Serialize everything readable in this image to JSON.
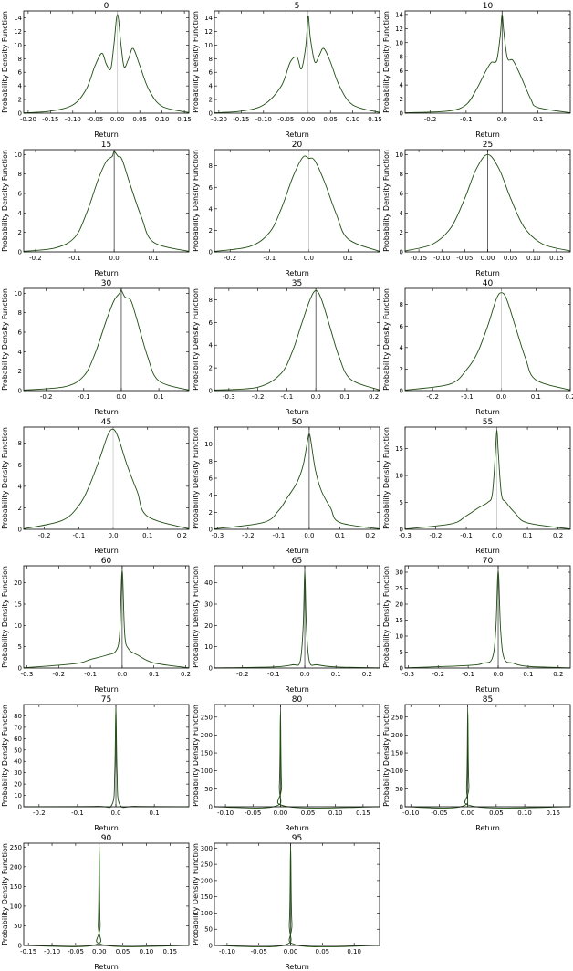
{
  "chart_data": [
    {
      "type": "line",
      "title": "0",
      "xlabel": "Return",
      "ylabel": "Probability Density Function",
      "xlim": [
        -0.21,
        0.16
      ],
      "ylim": [
        0,
        15
      ],
      "xticks": [
        -0.2,
        -0.15,
        -0.1,
        -0.05,
        0.0,
        0.05,
        0.1,
        0.15
      ],
      "yticks": [
        0,
        2,
        4,
        6,
        8,
        10,
        12,
        14
      ],
      "vline": {
        "x": 0.0,
        "dark": false
      },
      "x": [
        -0.21,
        -0.15,
        -0.1,
        -0.07,
        -0.05,
        -0.035,
        -0.025,
        -0.015,
        -0.008,
        0.0,
        0.008,
        0.015,
        0.025,
        0.035,
        0.05,
        0.07,
        0.1,
        0.16
      ],
      "y": [
        0.05,
        0.3,
        1.2,
        3.5,
        7.0,
        8.8,
        7.2,
        6.5,
        10.0,
        14.5,
        10.0,
        6.8,
        8.0,
        9.5,
        7.0,
        3.5,
        1.0,
        0.1
      ]
    },
    {
      "type": "line",
      "title": "5",
      "xlabel": "Return",
      "ylabel": "Probability Density Function",
      "xlim": [
        -0.21,
        0.16
      ],
      "ylim": [
        0,
        15
      ],
      "xticks": [
        -0.2,
        -0.15,
        -0.1,
        -0.05,
        0.0,
        0.05,
        0.1,
        0.15
      ],
      "yticks": [
        0,
        2,
        4,
        6,
        8,
        10,
        12,
        14
      ],
      "vline": {
        "x": 0.0,
        "dark": false
      },
      "x": [
        -0.21,
        -0.15,
        -0.1,
        -0.06,
        -0.04,
        -0.025,
        -0.015,
        -0.005,
        0.0,
        0.005,
        0.015,
        0.025,
        0.035,
        0.05,
        0.07,
        0.1,
        0.16
      ],
      "y": [
        0.05,
        0.3,
        1.2,
        4.0,
        7.5,
        8.2,
        6.5,
        10.0,
        14.3,
        11.0,
        7.5,
        8.5,
        9.5,
        7.5,
        4.0,
        1.2,
        0.1
      ]
    },
    {
      "type": "line",
      "title": "10",
      "xlabel": "Return",
      "ylabel": "Probability Density Function",
      "xlim": [
        -0.27,
        0.19
      ],
      "ylim": [
        0,
        14.5
      ],
      "xticks": [
        -0.2,
        -0.1,
        0.0,
        0.1
      ],
      "yticks": [
        0,
        2,
        4,
        6,
        8,
        10,
        12,
        14
      ],
      "vline": {
        "x": 0.0,
        "dark": true
      },
      "x": [
        -0.27,
        -0.15,
        -0.1,
        -0.07,
        -0.045,
        -0.03,
        -0.015,
        -0.005,
        0.0,
        0.005,
        0.015,
        0.03,
        0.05,
        0.08,
        0.1,
        0.19
      ],
      "y": [
        0.05,
        0.3,
        1.2,
        3.5,
        6.0,
        7.2,
        7.5,
        11.0,
        14.0,
        11.5,
        7.8,
        7.5,
        5.5,
        2.0,
        0.8,
        0.05
      ]
    },
    {
      "type": "line",
      "title": "15",
      "xlabel": "Return",
      "ylabel": "Probability Density Function",
      "xlim": [
        -0.23,
        0.19
      ],
      "ylim": [
        0,
        10.5
      ],
      "xticks": [
        -0.2,
        -0.1,
        0.0,
        0.1
      ],
      "yticks": [
        0,
        2,
        4,
        6,
        8,
        10
      ],
      "vline": {
        "x": 0.0,
        "dark": true
      },
      "x": [
        -0.23,
        -0.15,
        -0.1,
        -0.07,
        -0.04,
        -0.02,
        -0.005,
        0.0,
        0.01,
        0.02,
        0.04,
        0.07,
        0.1,
        0.19
      ],
      "y": [
        0.05,
        0.4,
        1.5,
        4.0,
        7.5,
        9.3,
        9.8,
        10.3,
        9.8,
        9.5,
        7.0,
        3.5,
        1.0,
        0.05
      ]
    },
    {
      "type": "line",
      "title": "20",
      "xlabel": "Return",
      "ylabel": "Probability Density Function",
      "xlim": [
        -0.24,
        0.18
      ],
      "ylim": [
        0,
        9.5
      ],
      "xticks": [
        -0.2,
        -0.1,
        0.0,
        0.1
      ],
      "yticks": [
        0,
        2,
        4,
        6,
        8
      ],
      "vline": {
        "x": 0.0,
        "dark": false
      },
      "x": [
        -0.24,
        -0.15,
        -0.1,
        -0.07,
        -0.04,
        -0.015,
        0.0,
        0.015,
        0.04,
        0.07,
        0.1,
        0.18
      ],
      "y": [
        0.05,
        0.5,
        1.8,
        4.0,
        7.0,
        8.8,
        8.7,
        8.5,
        6.5,
        3.5,
        1.2,
        0.05
      ]
    },
    {
      "type": "line",
      "title": "25",
      "xlabel": "Return",
      "ylabel": "Probability Density Function",
      "xlim": [
        -0.18,
        0.18
      ],
      "ylim": [
        0,
        10.5
      ],
      "xticks": [
        -0.15,
        -0.1,
        -0.05,
        0.0,
        0.05,
        0.1,
        0.15
      ],
      "yticks": [
        0,
        2,
        4,
        6,
        8,
        10
      ],
      "vline": {
        "x": 0.0,
        "dark": true
      },
      "x": [
        -0.18,
        -0.12,
        -0.08,
        -0.05,
        -0.025,
        0.0,
        0.025,
        0.05,
        0.08,
        0.12,
        0.18
      ],
      "y": [
        0.1,
        0.8,
        2.5,
        5.5,
        8.5,
        10.0,
        8.5,
        5.5,
        2.5,
        0.8,
        0.1
      ]
    },
    {
      "type": "line",
      "title": "30",
      "xlabel": "Return",
      "ylabel": "Probability Density Function",
      "xlim": [
        -0.26,
        0.18
      ],
      "ylim": [
        0,
        10.5
      ],
      "xticks": [
        -0.2,
        -0.1,
        0.0,
        0.1
      ],
      "yticks": [
        0,
        2,
        4,
        6,
        8,
        10
      ],
      "vline": {
        "x": 0.0,
        "dark": true
      },
      "x": [
        -0.26,
        -0.15,
        -0.1,
        -0.07,
        -0.04,
        -0.02,
        -0.005,
        0.0,
        0.01,
        0.025,
        0.04,
        0.07,
        0.1,
        0.18
      ],
      "y": [
        0.05,
        0.4,
        1.5,
        3.8,
        7.2,
        9.2,
        10.0,
        10.3,
        9.6,
        9.3,
        7.5,
        3.5,
        1.0,
        0.05
      ]
    },
    {
      "type": "line",
      "title": "35",
      "xlabel": "Return",
      "ylabel": "Probability Density Function",
      "xlim": [
        -0.35,
        0.22
      ],
      "ylim": [
        0,
        9
      ],
      "xticks": [
        -0.3,
        -0.2,
        -0.1,
        0.0,
        0.1,
        0.2
      ],
      "yticks": [
        0,
        2,
        4,
        6,
        8
      ],
      "vline": {
        "x": 0.0,
        "dark": true
      },
      "x": [
        -0.35,
        -0.2,
        -0.12,
        -0.08,
        -0.05,
        -0.02,
        0.0,
        0.02,
        0.05,
        0.08,
        0.12,
        0.22
      ],
      "y": [
        0.05,
        0.3,
        1.5,
        3.5,
        5.8,
        8.0,
        8.8,
        8.0,
        5.5,
        3.0,
        1.0,
        0.05
      ]
    },
    {
      "type": "line",
      "title": "40",
      "xlabel": "Return",
      "ylabel": "Probability Density Function",
      "xlim": [
        -0.28,
        0.2
      ],
      "ylim": [
        0,
        9.5
      ],
      "xticks": [
        -0.2,
        -0.1,
        0.0,
        0.1,
        0.2
      ],
      "yticks": [
        0,
        2,
        4,
        6,
        8
      ],
      "vline": {
        "x": 0.0,
        "dark": false
      },
      "x": [
        -0.28,
        -0.15,
        -0.1,
        -0.07,
        -0.04,
        -0.015,
        0.0,
        0.015,
        0.04,
        0.07,
        0.1,
        0.2
      ],
      "y": [
        0.05,
        0.6,
        2.0,
        3.5,
        6.0,
        8.5,
        9.1,
        8.5,
        6.0,
        3.0,
        1.0,
        0.05
      ]
    },
    {
      "type": "line",
      "title": "45",
      "xlabel": "Return",
      "ylabel": "Probability Density Function",
      "xlim": [
        -0.26,
        0.22
      ],
      "ylim": [
        0,
        9.5
      ],
      "xticks": [
        -0.2,
        -0.1,
        0.0,
        0.1,
        0.2
      ],
      "yticks": [
        0,
        2,
        4,
        6,
        8
      ],
      "vline": {
        "x": 0.0,
        "dark": false
      },
      "x": [
        -0.26,
        -0.15,
        -0.1,
        -0.07,
        -0.04,
        -0.015,
        0.0,
        0.015,
        0.04,
        0.07,
        0.1,
        0.22
      ],
      "y": [
        0.05,
        0.8,
        2.2,
        4.0,
        6.5,
        8.8,
        9.3,
        8.5,
        6.0,
        3.5,
        1.2,
        0.05
      ]
    },
    {
      "type": "line",
      "title": "50",
      "xlabel": "Return",
      "ylabel": "Probability Density Function",
      "xlim": [
        -0.31,
        0.23
      ],
      "ylim": [
        0,
        12
      ],
      "xticks": [
        -0.3,
        -0.2,
        -0.1,
        0.0,
        0.1,
        0.2
      ],
      "yticks": [
        0,
        2,
        4,
        6,
        8,
        10
      ],
      "vline": {
        "x": 0.0,
        "dark": true
      },
      "x": [
        -0.31,
        -0.15,
        -0.1,
        -0.07,
        -0.04,
        -0.02,
        -0.005,
        0.0,
        0.005,
        0.02,
        0.04,
        0.07,
        0.1,
        0.23
      ],
      "y": [
        0.05,
        0.8,
        2.2,
        3.8,
        5.5,
        7.5,
        10.5,
        11.2,
        10.5,
        7.0,
        4.5,
        2.5,
        0.8,
        0.05
      ]
    },
    {
      "type": "line",
      "title": "55",
      "xlabel": "Return",
      "ylabel": "Probability Density Function",
      "xlim": [
        -0.3,
        0.24
      ],
      "ylim": [
        0,
        19
      ],
      "xticks": [
        -0.3,
        -0.2,
        -0.1,
        0.0,
        0.1,
        0.2
      ],
      "yticks": [
        0,
        5,
        10,
        15
      ],
      "vline": {
        "x": 0.0,
        "dark": false
      },
      "x": [
        -0.3,
        -0.15,
        -0.1,
        -0.06,
        -0.03,
        -0.015,
        -0.005,
        0.0,
        0.005,
        0.015,
        0.03,
        0.06,
        0.1,
        0.24
      ],
      "y": [
        0.05,
        1.0,
        2.5,
        4.0,
        5.0,
        6.5,
        14.0,
        18.5,
        14.0,
        6.5,
        5.0,
        3.0,
        1.2,
        0.05
      ]
    },
    {
      "type": "line",
      "title": "60",
      "xlabel": "Return",
      "ylabel": "Probability Density Function",
      "xlim": [
        -0.31,
        0.21
      ],
      "ylim": [
        0,
        24
      ],
      "xticks": [
        -0.3,
        -0.2,
        -0.1,
        0.0,
        0.1,
        0.2
      ],
      "yticks": [
        0,
        5,
        10,
        15,
        20
      ],
      "vline": {
        "x": 0.0,
        "dark": true
      },
      "x": [
        -0.31,
        -0.15,
        -0.1,
        -0.05,
        -0.02,
        -0.008,
        0.0,
        0.008,
        0.02,
        0.05,
        0.1,
        0.21
      ],
      "y": [
        0.05,
        1.0,
        2.0,
        3.0,
        4.0,
        8.0,
        23.0,
        8.0,
        4.5,
        3.0,
        1.2,
        0.05
      ]
    },
    {
      "type": "line",
      "title": "65",
      "xlabel": "Return",
      "ylabel": "Probability Density Function",
      "xlim": [
        -0.29,
        0.24
      ],
      "ylim": [
        0,
        48
      ],
      "xticks": [
        -0.2,
        -0.1,
        0.0,
        0.1,
        0.2
      ],
      "yticks": [
        0,
        10,
        20,
        30,
        40
      ],
      "vline": {
        "x": 0.0,
        "dark": true
      },
      "x": [
        -0.29,
        -0.1,
        -0.04,
        -0.015,
        -0.005,
        0.0,
        0.005,
        0.015,
        0.04,
        0.1,
        0.24
      ],
      "y": [
        0.05,
        0.5,
        1.5,
        3.0,
        20.0,
        46.0,
        20.0,
        3.0,
        1.5,
        0.5,
        0.05
      ]
    },
    {
      "type": "line",
      "title": "70",
      "xlabel": "Return",
      "ylabel": "Probability Density Function",
      "xlim": [
        -0.31,
        0.24
      ],
      "ylim": [
        0,
        32
      ],
      "xticks": [
        -0.3,
        -0.2,
        -0.1,
        0.0,
        0.1,
        0.2
      ],
      "yticks": [
        0,
        5,
        10,
        15,
        20,
        25,
        30
      ],
      "vline": {
        "x": 0.0,
        "dark": true
      },
      "x": [
        -0.31,
        -0.1,
        -0.05,
        -0.02,
        -0.008,
        0.0,
        0.008,
        0.02,
        0.05,
        0.1,
        0.24
      ],
      "y": [
        0.05,
        0.8,
        1.5,
        3.0,
        12.0,
        30.5,
        12.0,
        3.0,
        1.5,
        0.5,
        0.05
      ]
    },
    {
      "type": "line",
      "title": "75",
      "xlabel": "Return",
      "ylabel": "Probability Density Function",
      "xlim": [
        -0.24,
        0.19
      ],
      "ylim": [
        0,
        90
      ],
      "xticks": [
        -0.2,
        -0.1,
        0.0,
        0.1
      ],
      "yticks": [
        0,
        10,
        20,
        30,
        40,
        50,
        60,
        70,
        80
      ],
      "vline": {
        "x": 0.0,
        "dark": true
      },
      "x": [
        -0.24,
        -0.05,
        -0.01,
        -0.003,
        0.0,
        0.003,
        0.01,
        0.05,
        0.19
      ],
      "y": [
        0.05,
        0.3,
        2.0,
        30.0,
        88.0,
        30.0,
        2.0,
        0.3,
        0.05
      ]
    },
    {
      "type": "line",
      "title": "80",
      "xlabel": "Return",
      "ylabel": "Probability Density Function",
      "xlim": [
        -0.12,
        0.18
      ],
      "ylim": [
        0,
        285
      ],
      "xticks": [
        -0.1,
        -0.05,
        0.0,
        0.05,
        0.1,
        0.15
      ],
      "yticks": [
        0,
        50,
        100,
        150,
        200,
        250
      ],
      "vline": {
        "x": 0.0,
        "dark": true
      },
      "x": [
        -0.12,
        -0.01,
        -0.002,
        0.0,
        0.002,
        0.01,
        0.18
      ],
      "y": [
        0.05,
        1.0,
        60.0,
        268.0,
        60.0,
        1.0,
        0.05
      ]
    },
    {
      "type": "line",
      "title": "85",
      "xlabel": "Return",
      "ylabel": "Probability Density Function",
      "xlim": [
        -0.11,
        0.18
      ],
      "ylim": [
        0,
        285
      ],
      "xticks": [
        -0.1,
        -0.05,
        0.0,
        0.05,
        0.1,
        0.15
      ],
      "yticks": [
        0,
        50,
        100,
        150,
        200,
        250
      ],
      "vline": {
        "x": 0.0,
        "dark": true
      },
      "x": [
        -0.11,
        -0.01,
        -0.002,
        0.0,
        0.002,
        0.01,
        0.18
      ],
      "y": [
        0.05,
        1.0,
        60.0,
        272.0,
        60.0,
        1.0,
        0.05
      ]
    },
    {
      "type": "line",
      "title": "90",
      "xlabel": "Return",
      "ylabel": "Probability Density Function",
      "xlim": [
        -0.16,
        0.19
      ],
      "ylim": [
        0,
        260
      ],
      "xticks": [
        -0.15,
        -0.1,
        -0.05,
        0.0,
        0.05,
        0.1,
        0.15
      ],
      "yticks": [
        0,
        50,
        100,
        150,
        200,
        250
      ],
      "vline": {
        "x": 0.0,
        "dark": true
      },
      "x": [
        -0.16,
        -0.01,
        -0.002,
        0.0,
        0.002,
        0.01,
        0.19
      ],
      "y": [
        0.05,
        1.0,
        55.0,
        250.0,
        55.0,
        1.0,
        0.05
      ]
    },
    {
      "type": "line",
      "title": "95",
      "xlabel": "Return",
      "ylabel": "Probability Density Function",
      "xlim": [
        -0.12,
        0.14
      ],
      "ylim": [
        0,
        315
      ],
      "xticks": [
        -0.1,
        -0.05,
        0.0,
        0.05,
        0.1
      ],
      "yticks": [
        0,
        50,
        100,
        150,
        200,
        250,
        300
      ],
      "vline": {
        "x": 0.0,
        "dark": true
      },
      "x": [
        -0.12,
        -0.01,
        -0.002,
        0.0,
        0.002,
        0.01,
        0.14
      ],
      "y": [
        0.05,
        1.0,
        70.0,
        308.0,
        70.0,
        1.0,
        0.05
      ]
    }
  ]
}
